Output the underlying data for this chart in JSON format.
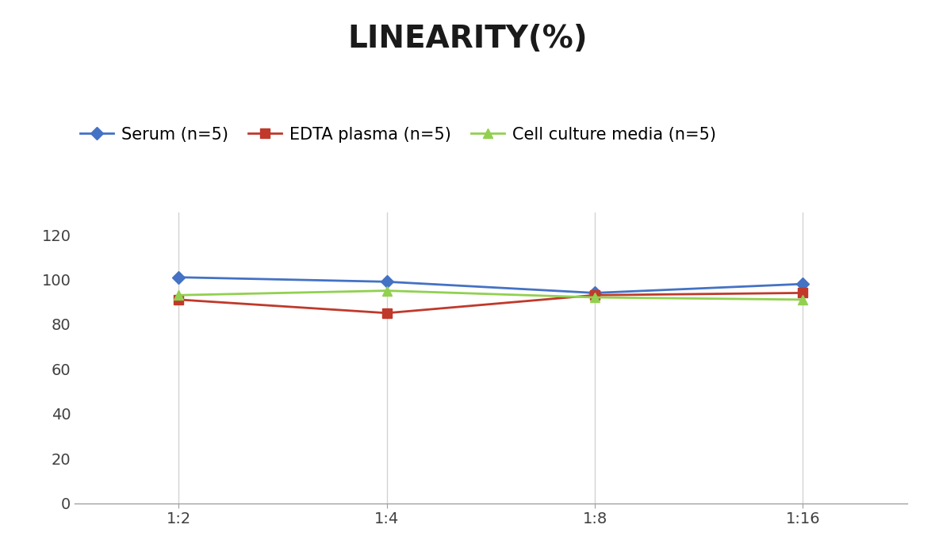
{
  "title": "LINEARITY(%)",
  "title_fontsize": 28,
  "title_fontweight": "bold",
  "x_labels": [
    "1:2",
    "1:4",
    "1:8",
    "1:16"
  ],
  "x_positions": [
    0,
    1,
    2,
    3
  ],
  "series": [
    {
      "label": "Serum (n=5)",
      "values": [
        101,
        99,
        94,
        98
      ],
      "color": "#4472C4",
      "marker": "D",
      "markersize": 8,
      "linewidth": 2.0
    },
    {
      "label": "EDTA plasma (n=5)",
      "values": [
        91,
        85,
        93,
        94
      ],
      "color": "#C0392B",
      "marker": "s",
      "markersize": 8,
      "linewidth": 2.0
    },
    {
      "label": "Cell culture media (n=5)",
      "values": [
        93,
        95,
        92,
        91
      ],
      "color": "#92D050",
      "marker": "^",
      "markersize": 8,
      "linewidth": 2.0
    }
  ],
  "ylim": [
    0,
    130
  ],
  "yticks": [
    0,
    20,
    40,
    60,
    80,
    100,
    120
  ],
  "grid_color": "#D3D3D3",
  "background_color": "#FFFFFF",
  "legend_fontsize": 15,
  "tick_fontsize": 14,
  "bottom_spine_color": "#A0A0A0"
}
